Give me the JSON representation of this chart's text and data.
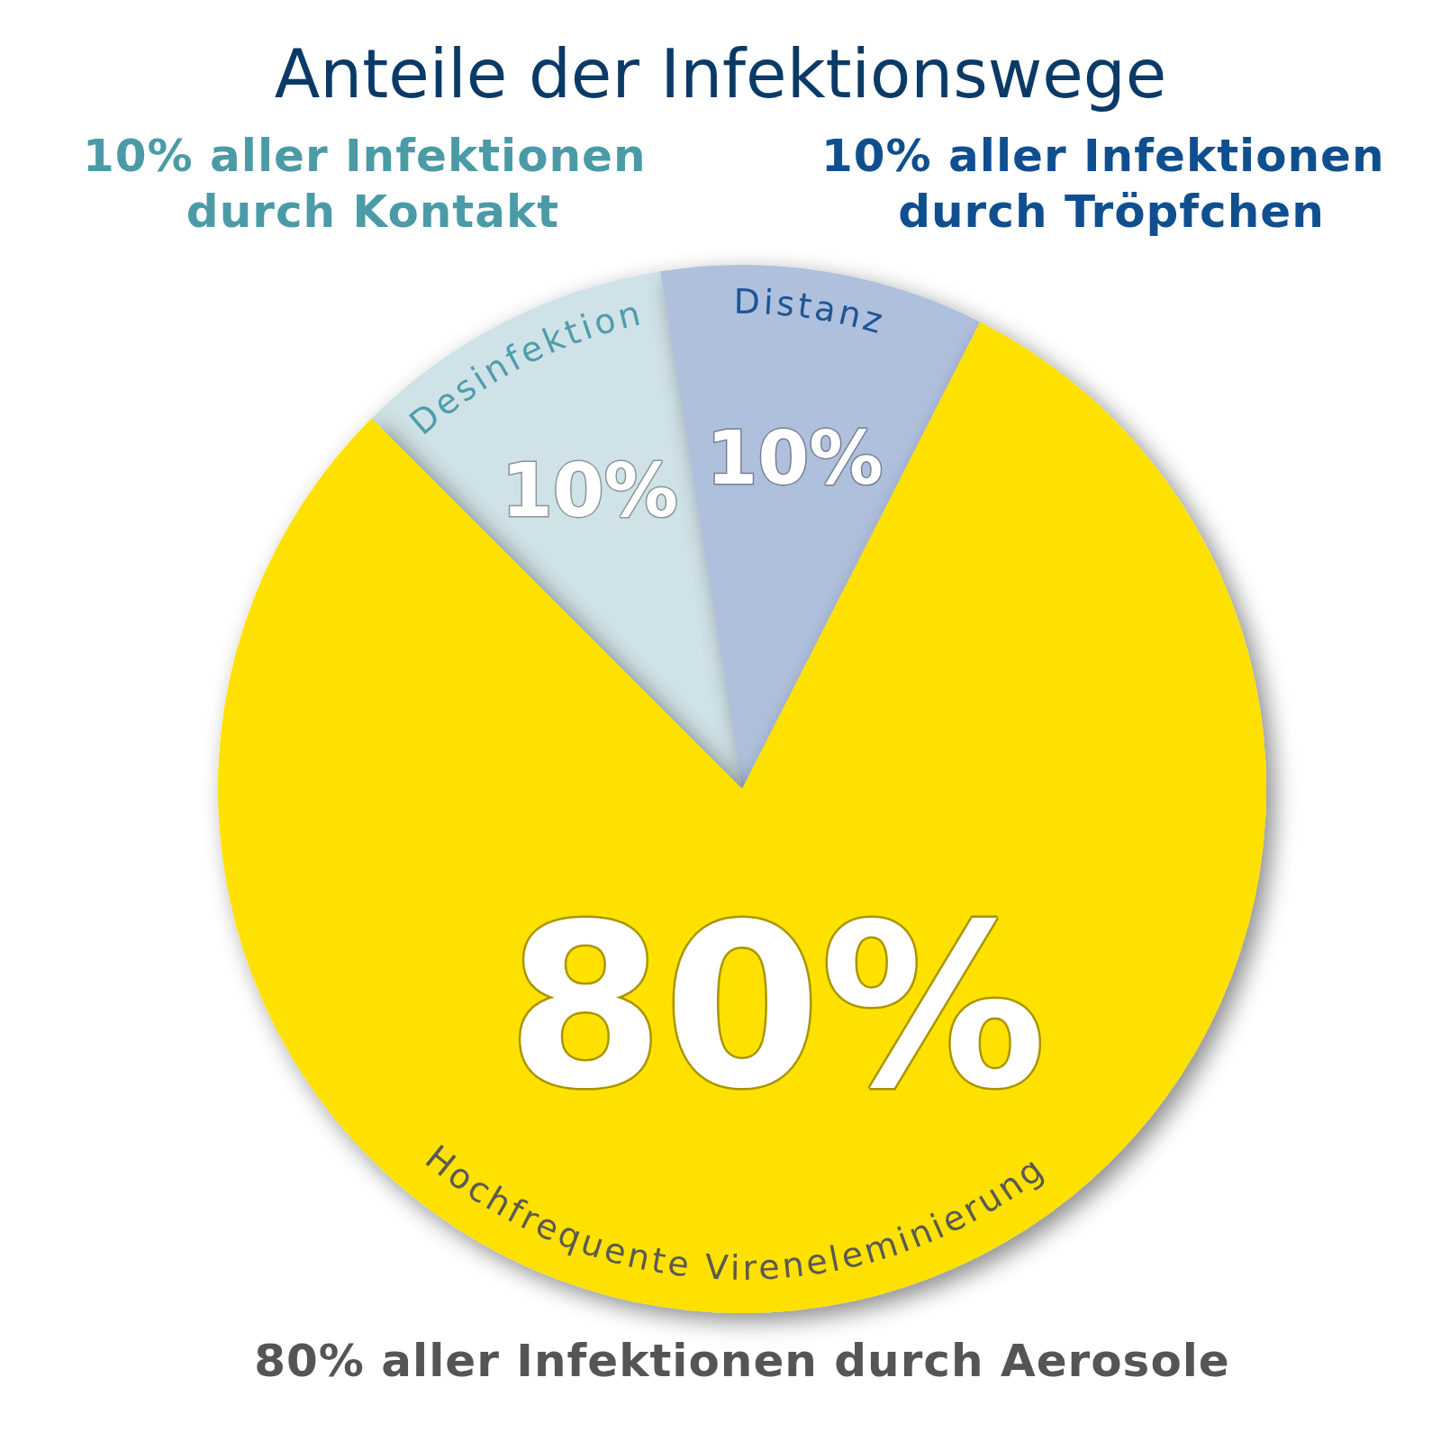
{
  "chart_data": {
    "type": "pie",
    "title": "Anteile der Infektionswege",
    "categories": [
      "Desinfektion",
      "Distanz",
      "Hochfrequente Vireneleminierung"
    ],
    "values": [
      10,
      10,
      80
    ],
    "colors": [
      "#cfe2e7",
      "#afc0dd",
      "#ffe100"
    ],
    "value_labels": [
      "10%",
      "10%",
      "80%"
    ],
    "annotations": [
      "10% aller Infektionen durch Kontakt",
      "10% aller Infektionen durch Tröpfchen",
      "80% aller Infektionen durch Aerosole"
    ]
  }
}
